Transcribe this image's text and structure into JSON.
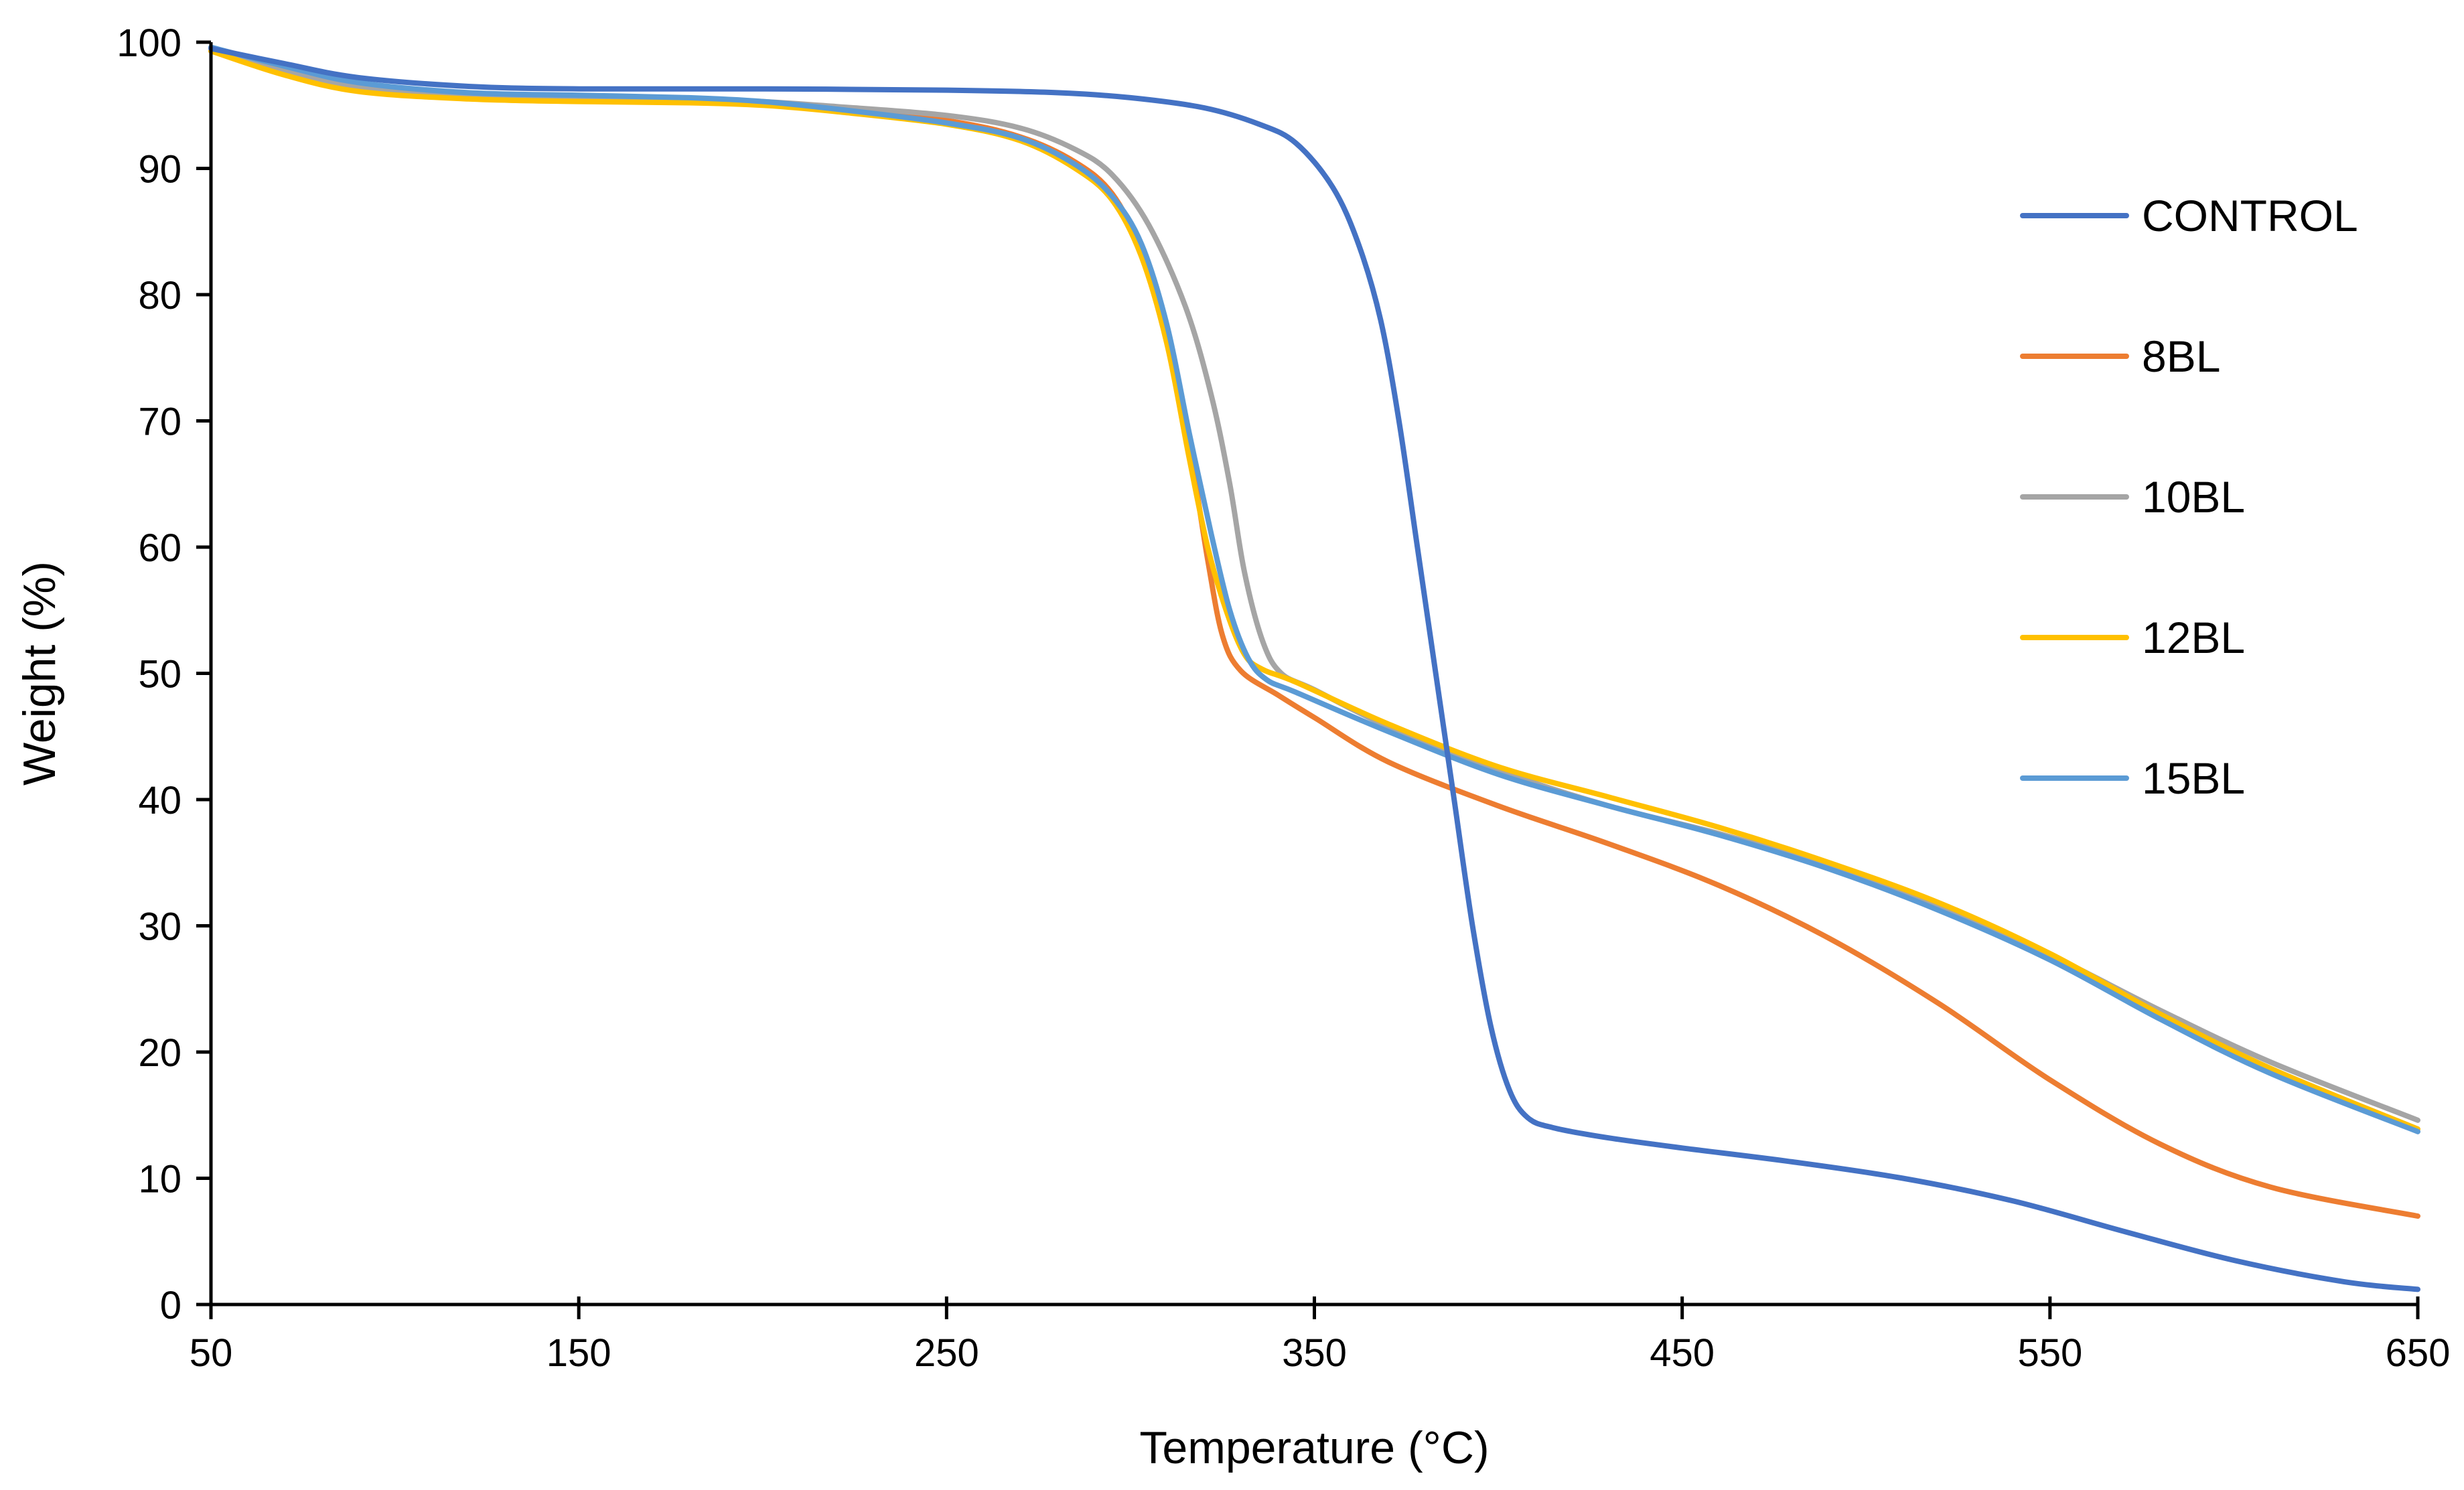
{
  "chart_data": {
    "type": "line",
    "title": "",
    "xlabel": "Temperature (°C)",
    "ylabel": "Weight (%)",
    "xlim": [
      50,
      650
    ],
    "ylim": [
      0,
      100
    ],
    "x_ticks": [
      50,
      150,
      250,
      350,
      450,
      550,
      650
    ],
    "y_ticks": [
      0,
      10,
      20,
      30,
      40,
      50,
      60,
      70,
      80,
      90,
      100
    ],
    "x_tick_labels": [
      "50",
      "150",
      "250",
      "350",
      "450",
      "550",
      "650"
    ],
    "y_tick_labels": [
      "0",
      "10",
      "20",
      "30",
      "40",
      "50",
      "60",
      "70",
      "80",
      "90",
      "100"
    ],
    "grid": false,
    "legend_position": "right",
    "series": [
      {
        "name": "CONTROL",
        "color": "#4472C4",
        "points": [
          [
            50,
            99.5
          ],
          [
            70,
            98.3
          ],
          [
            90,
            97.2
          ],
          [
            120,
            96.5
          ],
          [
            150,
            96.3
          ],
          [
            200,
            96.3
          ],
          [
            250,
            96.2
          ],
          [
            280,
            96.0
          ],
          [
            300,
            95.6
          ],
          [
            320,
            94.8
          ],
          [
            335,
            93.5
          ],
          [
            345,
            92.0
          ],
          [
            355,
            88.5
          ],
          [
            362,
            84.0
          ],
          [
            368,
            78.0
          ],
          [
            373,
            70.0
          ],
          [
            378,
            60.0
          ],
          [
            383,
            50.0
          ],
          [
            388,
            40.0
          ],
          [
            393,
            30.0
          ],
          [
            398,
            22.0
          ],
          [
            403,
            17.0
          ],
          [
            408,
            14.8
          ],
          [
            415,
            14.0
          ],
          [
            430,
            13.2
          ],
          [
            450,
            12.4
          ],
          [
            480,
            11.3
          ],
          [
            510,
            10.0
          ],
          [
            540,
            8.2
          ],
          [
            570,
            5.8
          ],
          [
            600,
            3.5
          ],
          [
            630,
            1.8
          ],
          [
            650,
            1.2
          ]
        ]
      },
      {
        "name": "8BL",
        "color": "#ED7D31",
        "points": [
          [
            50,
            99.3
          ],
          [
            70,
            97.8
          ],
          [
            90,
            96.5
          ],
          [
            120,
            95.7
          ],
          [
            150,
            95.5
          ],
          [
            180,
            95.4
          ],
          [
            200,
            95.2
          ],
          [
            220,
            94.8
          ],
          [
            250,
            93.8
          ],
          [
            270,
            92.5
          ],
          [
            285,
            90.5
          ],
          [
            295,
            88.0
          ],
          [
            303,
            83.5
          ],
          [
            310,
            77.0
          ],
          [
            316,
            68.0
          ],
          [
            321,
            59.0
          ],
          [
            325,
            53.0
          ],
          [
            330,
            50.2
          ],
          [
            340,
            48.3
          ],
          [
            350,
            46.5
          ],
          [
            370,
            43.0
          ],
          [
            400,
            39.5
          ],
          [
            430,
            36.5
          ],
          [
            460,
            33.2
          ],
          [
            490,
            29.0
          ],
          [
            520,
            23.8
          ],
          [
            550,
            17.8
          ],
          [
            580,
            12.7
          ],
          [
            610,
            9.3
          ],
          [
            650,
            7.0
          ]
        ]
      },
      {
        "name": "10BL",
        "color": "#A5A5A5",
        "points": [
          [
            50,
            99.3
          ],
          [
            70,
            97.8
          ],
          [
            90,
            96.5
          ],
          [
            120,
            95.8
          ],
          [
            150,
            95.6
          ],
          [
            180,
            95.5
          ],
          [
            200,
            95.3
          ],
          [
            220,
            94.9
          ],
          [
            250,
            94.2
          ],
          [
            270,
            93.2
          ],
          [
            285,
            91.5
          ],
          [
            295,
            89.5
          ],
          [
            305,
            85.5
          ],
          [
            315,
            79.0
          ],
          [
            322,
            72.0
          ],
          [
            327,
            65.0
          ],
          [
            331,
            58.0
          ],
          [
            336,
            52.5
          ],
          [
            341,
            50.0
          ],
          [
            350,
            48.7
          ],
          [
            370,
            45.8
          ],
          [
            400,
            42.3
          ],
          [
            430,
            39.5
          ],
          [
            460,
            37.3
          ],
          [
            490,
            34.7
          ],
          [
            520,
            31.5
          ],
          [
            550,
            27.7
          ],
          [
            580,
            23.3
          ],
          [
            610,
            19.2
          ],
          [
            650,
            14.6
          ]
        ]
      },
      {
        "name": "12BL",
        "color": "#FFC000",
        "points": [
          [
            50,
            99.3
          ],
          [
            70,
            97.4
          ],
          [
            90,
            96.1
          ],
          [
            120,
            95.5
          ],
          [
            150,
            95.3
          ],
          [
            180,
            95.2
          ],
          [
            200,
            95.0
          ],
          [
            220,
            94.5
          ],
          [
            250,
            93.5
          ],
          [
            270,
            92.2
          ],
          [
            285,
            90.0
          ],
          [
            295,
            87.5
          ],
          [
            303,
            83.0
          ],
          [
            310,
            76.0
          ],
          [
            316,
            67.0
          ],
          [
            321,
            60.0
          ],
          [
            326,
            55.0
          ],
          [
            331,
            51.5
          ],
          [
            336,
            50.3
          ],
          [
            345,
            49.3
          ],
          [
            370,
            46.0
          ],
          [
            400,
            42.6
          ],
          [
            430,
            40.2
          ],
          [
            460,
            37.8
          ],
          [
            490,
            35.0
          ],
          [
            520,
            31.8
          ],
          [
            550,
            27.8
          ],
          [
            580,
            23.0
          ],
          [
            610,
            18.7
          ],
          [
            650,
            13.9
          ]
        ]
      },
      {
        "name": "15BL",
        "color": "#5B9BD5",
        "points": [
          [
            50,
            99.6
          ],
          [
            70,
            98.1
          ],
          [
            90,
            96.8
          ],
          [
            120,
            96.0
          ],
          [
            150,
            95.8
          ],
          [
            180,
            95.6
          ],
          [
            200,
            95.3
          ],
          [
            220,
            94.7
          ],
          [
            250,
            93.6
          ],
          [
            270,
            92.4
          ],
          [
            285,
            90.3
          ],
          [
            295,
            87.8
          ],
          [
            303,
            84.0
          ],
          [
            310,
            77.5
          ],
          [
            316,
            69.0
          ],
          [
            322,
            61.0
          ],
          [
            327,
            55.0
          ],
          [
            332,
            51.2
          ],
          [
            337,
            49.5
          ],
          [
            345,
            48.5
          ],
          [
            370,
            45.4
          ],
          [
            400,
            42.0
          ],
          [
            430,
            39.5
          ],
          [
            460,
            37.2
          ],
          [
            490,
            34.5
          ],
          [
            520,
            31.2
          ],
          [
            550,
            27.3
          ],
          [
            580,
            22.6
          ],
          [
            610,
            18.3
          ],
          [
            650,
            13.7
          ]
        ]
      }
    ]
  }
}
